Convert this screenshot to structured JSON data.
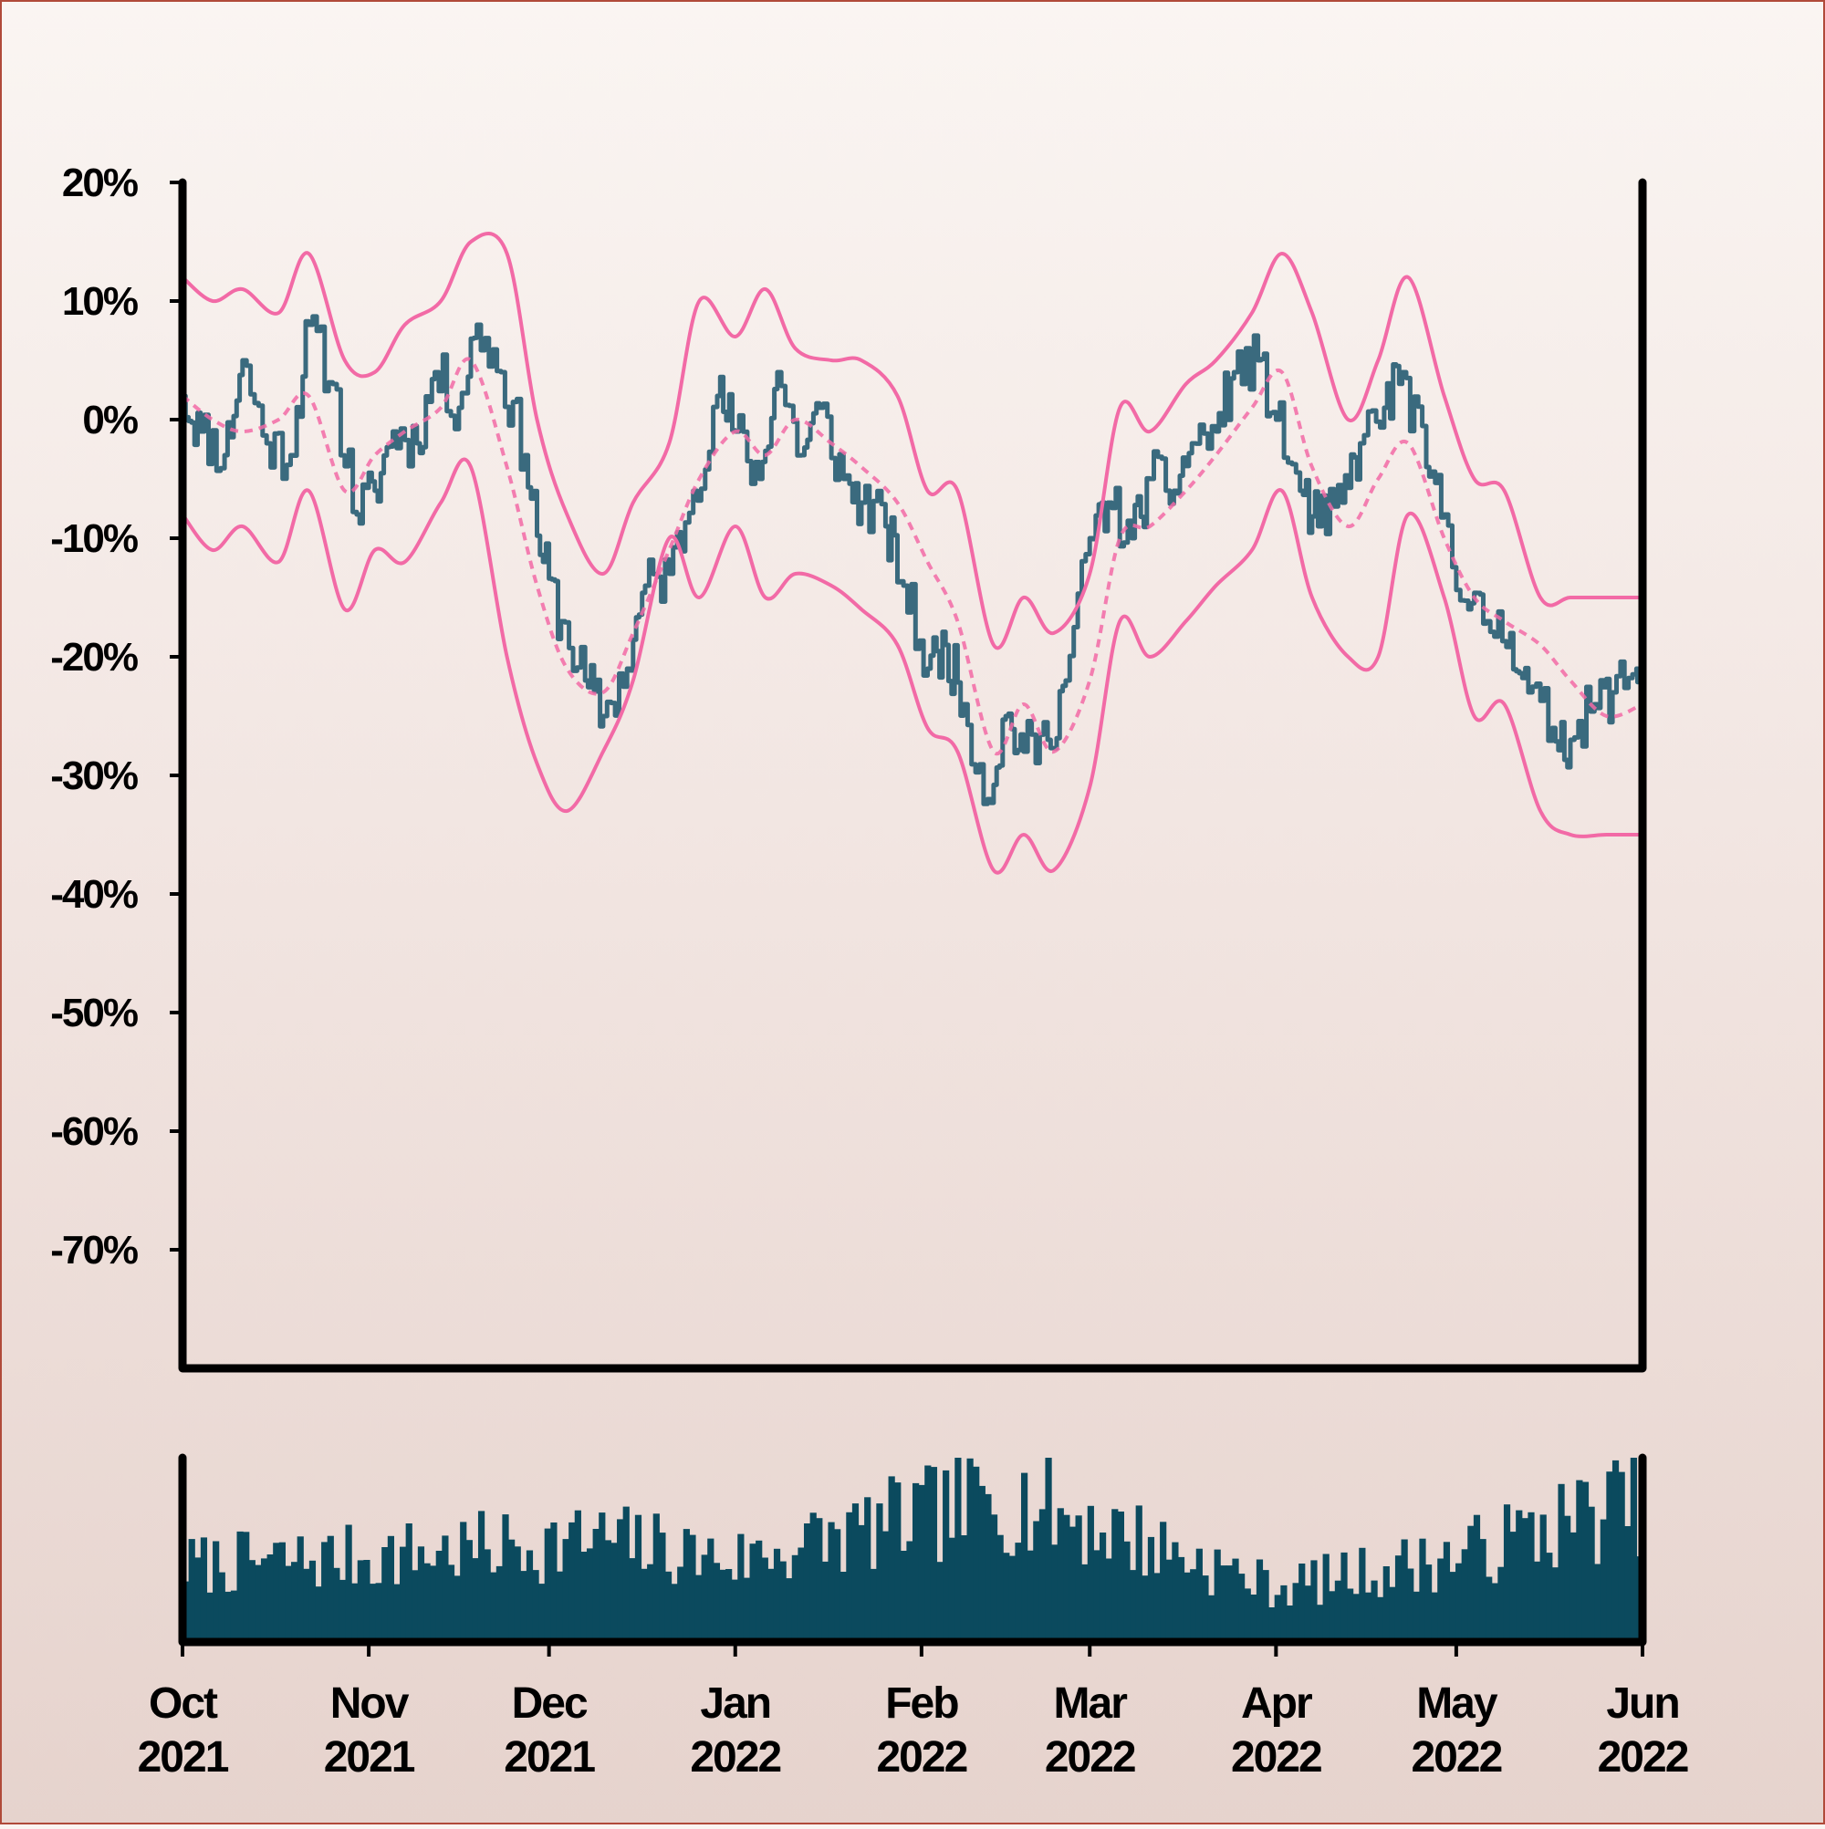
{
  "chart_data": {
    "type": "line",
    "title": "",
    "xlabel": "",
    "ylabel": "",
    "ylim": [
      -80,
      20
    ],
    "yticks": [
      20,
      10,
      0,
      -10,
      -20,
      -30,
      -40,
      -50,
      -60,
      -70
    ],
    "ytick_labels": [
      "20%",
      "10%",
      "0%",
      "-10%",
      "-20%",
      "-30%",
      "-40%",
      "-50%",
      "-60%",
      "-70%"
    ],
    "xlim": [
      "2021-10-01",
      "2022-06-01"
    ],
    "xticks": [
      {
        "date": "2021-10-01",
        "month": "Oct",
        "year": "2021"
      },
      {
        "date": "2021-11-01",
        "month": "Nov",
        "year": "2021"
      },
      {
        "date": "2021-12-01",
        "month": "Dec",
        "year": "2021"
      },
      {
        "date": "2022-01-01",
        "month": "Jan",
        "year": "2022"
      },
      {
        "date": "2022-02-01",
        "month": "Feb",
        "year": "2022"
      },
      {
        "date": "2022-03-01",
        "month": "Mar",
        "year": "2022"
      },
      {
        "date": "2022-04-01",
        "month": "Apr",
        "year": "2022"
      },
      {
        "date": "2022-05-01",
        "month": "May",
        "year": "2022"
      },
      {
        "date": "2022-06-01",
        "month": "Jun",
        "year": "2022"
      }
    ],
    "grid": false,
    "legend": false,
    "colors": {
      "price": "#3a6a7e",
      "bands": "#f26aa6",
      "volume": "#0b4a5e",
      "axes": "#000000"
    },
    "series": [
      {
        "role": "price",
        "x": [
          "2021-10-01",
          "2021-10-04",
          "2021-10-08",
          "2021-10-11",
          "2021-10-15",
          "2021-10-19",
          "2021-10-22",
          "2021-10-26",
          "2021-10-30",
          "2021-11-02",
          "2021-11-05",
          "2021-11-09",
          "2021-11-12",
          "2021-11-16",
          "2021-11-19",
          "2021-11-23",
          "2021-11-27",
          "2021-11-30",
          "2021-12-03",
          "2021-12-07",
          "2021-12-10",
          "2021-12-14",
          "2021-12-17",
          "2021-12-21",
          "2021-12-25",
          "2021-12-29",
          "2022-01-01",
          "2022-01-05",
          "2022-01-08",
          "2022-01-12",
          "2022-01-15",
          "2022-01-19",
          "2022-01-22",
          "2022-01-26",
          "2022-01-29",
          "2022-02-02",
          "2022-02-05",
          "2022-02-08",
          "2022-02-12",
          "2022-02-15",
          "2022-02-18",
          "2022-02-22",
          "2022-02-25",
          "2022-03-01",
          "2022-03-04",
          "2022-03-08",
          "2022-03-11",
          "2022-03-15",
          "2022-03-18",
          "2022-03-22",
          "2022-03-25",
          "2022-03-29",
          "2022-04-01",
          "2022-04-05",
          "2022-04-08",
          "2022-04-12",
          "2022-04-15",
          "2022-04-19",
          "2022-04-22",
          "2022-04-26",
          "2022-04-29",
          "2022-05-03",
          "2022-05-06",
          "2022-05-10",
          "2022-05-13",
          "2022-05-17",
          "2022-05-20",
          "2022-05-24",
          "2022-05-27",
          "2022-05-31",
          "2022-06-01"
        ],
        "values": [
          2,
          -1,
          -3,
          5,
          -2,
          -3,
          8,
          3,
          -8,
          -6,
          -1,
          -2,
          4,
          1,
          8,
          4,
          -3,
          -12,
          -17,
          -22,
          -25,
          -21,
          -14,
          -13,
          -6,
          2,
          -1,
          -5,
          4,
          -3,
          1,
          -5,
          -7,
          -9,
          -14,
          -21,
          -19,
          -24,
          -32,
          -25,
          -28,
          -27,
          -22,
          -10,
          -7,
          -10,
          -5,
          -6,
          -2,
          -1,
          4,
          5,
          0,
          -6,
          -9,
          -7,
          -2,
          1,
          4,
          -4,
          -8,
          -16,
          -17,
          -18,
          -23,
          -26,
          -27,
          -24,
          -23,
          -21,
          -21
        ]
      },
      {
        "role": "band-middle",
        "style": "dashed",
        "x": [
          "2021-10-01",
          "2021-10-06",
          "2021-10-11",
          "2021-10-17",
          "2021-10-22",
          "2021-10-28",
          "2021-11-02",
          "2021-11-07",
          "2021-11-13",
          "2021-11-18",
          "2021-11-24",
          "2021-11-29",
          "2021-12-04",
          "2021-12-10",
          "2021-12-15",
          "2021-12-21",
          "2021-12-26",
          "2022-01-01",
          "2022-01-06",
          "2022-01-11",
          "2022-01-17",
          "2022-01-22",
          "2022-01-28",
          "2022-02-02",
          "2022-02-07",
          "2022-02-13",
          "2022-02-18",
          "2022-02-23",
          "2022-03-01",
          "2022-03-06",
          "2022-03-11",
          "2022-03-17",
          "2022-03-22",
          "2022-03-28",
          "2022-04-02",
          "2022-04-07",
          "2022-04-13",
          "2022-04-18",
          "2022-04-23",
          "2022-04-29",
          "2022-05-04",
          "2022-05-09",
          "2022-05-15",
          "2022-05-20",
          "2022-05-26",
          "2022-06-01"
        ],
        "values": [
          2,
          0,
          -1,
          0,
          2,
          -6,
          -3,
          -1,
          1,
          5,
          -4,
          -14,
          -21,
          -23,
          -18,
          -11,
          -5,
          -1,
          -3,
          0,
          -2,
          -4,
          -7,
          -12,
          -17,
          -28,
          -24,
          -28,
          -22,
          -10,
          -9,
          -6,
          -3,
          1,
          4,
          -4,
          -9,
          -5,
          -2,
          -10,
          -15,
          -17,
          -19,
          -22,
          -25,
          -24
        ]
      },
      {
        "role": "band-upper",
        "x": [
          "2021-10-01",
          "2021-10-06",
          "2021-10-11",
          "2021-10-17",
          "2021-10-22",
          "2021-10-28",
          "2021-11-02",
          "2021-11-07",
          "2021-11-13",
          "2021-11-18",
          "2021-11-24",
          "2021-11-29",
          "2021-12-04",
          "2021-12-10",
          "2021-12-15",
          "2021-12-21",
          "2021-12-26",
          "2022-01-01",
          "2022-01-06",
          "2022-01-11",
          "2022-01-17",
          "2022-01-22",
          "2022-01-28",
          "2022-02-02",
          "2022-02-07",
          "2022-02-13",
          "2022-02-18",
          "2022-02-23",
          "2022-03-01",
          "2022-03-06",
          "2022-03-11",
          "2022-03-17",
          "2022-03-22",
          "2022-03-28",
          "2022-04-02",
          "2022-04-07",
          "2022-04-13",
          "2022-04-18",
          "2022-04-23",
          "2022-04-29",
          "2022-05-04",
          "2022-05-09",
          "2022-05-15",
          "2022-05-20",
          "2022-05-26",
          "2022-06-01"
        ],
        "values": [
          12,
          10,
          11,
          9,
          14,
          5,
          4,
          8,
          10,
          15,
          14,
          0,
          -8,
          -13,
          -7,
          -2,
          10,
          7,
          11,
          6,
          5,
          5,
          2,
          -6,
          -6,
          -19,
          -15,
          -18,
          -13,
          1,
          -1,
          3,
          5,
          9,
          14,
          9,
          0,
          5,
          12,
          2,
          -5,
          -6,
          -15,
          -15,
          -15,
          -15
        ]
      },
      {
        "role": "band-lower",
        "x": [
          "2021-10-01",
          "2021-10-06",
          "2021-10-11",
          "2021-10-17",
          "2021-10-22",
          "2021-10-28",
          "2021-11-02",
          "2021-11-07",
          "2021-11-13",
          "2021-11-18",
          "2021-11-24",
          "2021-11-29",
          "2021-12-04",
          "2021-12-10",
          "2021-12-15",
          "2021-12-21",
          "2021-12-26",
          "2022-01-01",
          "2022-01-06",
          "2022-01-11",
          "2022-01-17",
          "2022-01-22",
          "2022-01-28",
          "2022-02-02",
          "2022-02-07",
          "2022-02-13",
          "2022-02-18",
          "2022-02-23",
          "2022-03-01",
          "2022-03-06",
          "2022-03-11",
          "2022-03-17",
          "2022-03-22",
          "2022-03-28",
          "2022-04-02",
          "2022-04-07",
          "2022-04-13",
          "2022-04-18",
          "2022-04-23",
          "2022-04-29",
          "2022-05-04",
          "2022-05-09",
          "2022-05-15",
          "2022-05-20",
          "2022-05-26",
          "2022-06-01"
        ],
        "values": [
          -8,
          -11,
          -9,
          -12,
          -6,
          -16,
          -11,
          -12,
          -7,
          -4,
          -20,
          -29,
          -33,
          -28,
          -22,
          -10,
          -15,
          -9,
          -15,
          -13,
          -14,
          -16,
          -19,
          -26,
          -28,
          -38,
          -35,
          -38,
          -31,
          -17,
          -20,
          -17,
          -14,
          -11,
          -6,
          -15,
          -20,
          -20,
          -8,
          -15,
          -25,
          -24,
          -33,
          -35,
          -35,
          -35
        ]
      }
    ],
    "volume": {
      "seed": 7,
      "count": 242,
      "envelope": [
        {
          "date": "2021-10-01",
          "level": 0.45
        },
        {
          "date": "2021-11-01",
          "level": 0.5
        },
        {
          "date": "2021-12-10",
          "level": 0.6
        },
        {
          "date": "2022-01-01",
          "level": 0.48
        },
        {
          "date": "2022-02-15",
          "level": 0.85
        },
        {
          "date": "2022-03-01",
          "level": 0.7
        },
        {
          "date": "2022-04-01",
          "level": 0.32
        },
        {
          "date": "2022-05-01",
          "level": 0.5
        },
        {
          "date": "2022-06-01",
          "level": 0.85
        }
      ]
    }
  }
}
